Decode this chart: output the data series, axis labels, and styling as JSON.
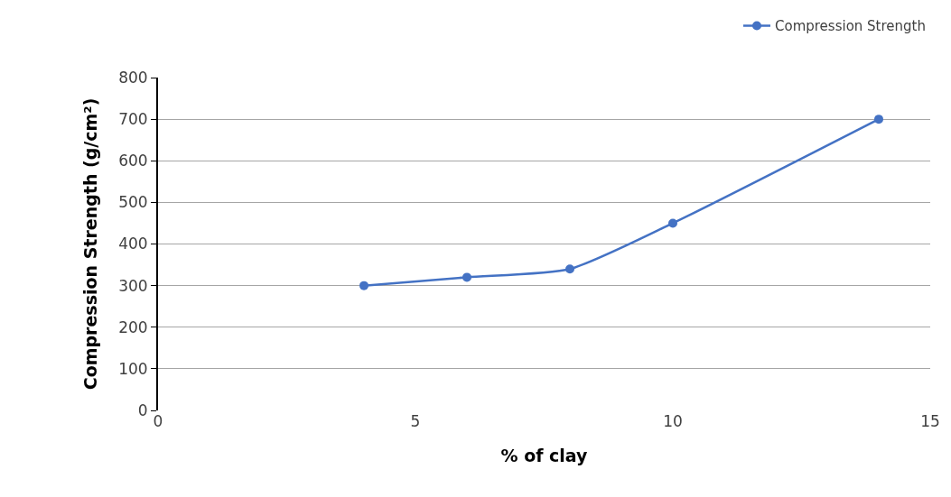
{
  "chart_data": {
    "type": "line",
    "xlabel": "% of clay",
    "ylabel": "Compression Strength (g/cm²)",
    "x": [
      4,
      6,
      8,
      10,
      14
    ],
    "series": [
      {
        "name": "Compression Strength",
        "color": "#4472c4",
        "values": [
          300,
          320,
          340,
          450,
          700
        ]
      }
    ],
    "xlim": [
      0,
      15
    ],
    "xticks": [
      0,
      5,
      10,
      15
    ],
    "ylim": [
      0,
      800
    ],
    "yticks": [
      0,
      100,
      200,
      300,
      400,
      500,
      600,
      700,
      800
    ],
    "grid": "y",
    "legend": "top right",
    "marker": "circle",
    "line_style": "solid"
  }
}
